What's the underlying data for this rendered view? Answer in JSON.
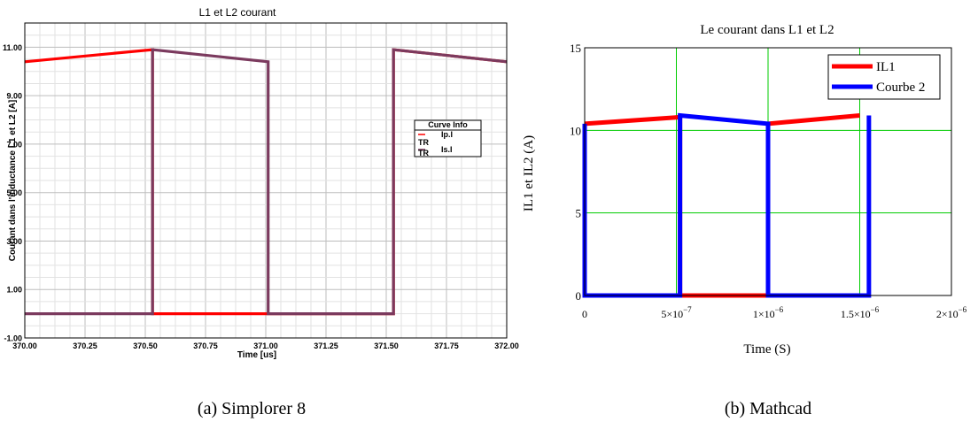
{
  "chart_data": [
    {
      "type": "line",
      "title": "L1 et L2 courant",
      "xlabel": "Time [us]",
      "ylabel": "Courant dans l'inductance L1 et L2 [A]",
      "xlim": [
        370.0,
        372.0
      ],
      "ylim": [
        -1.0,
        12.0
      ],
      "x_ticks": [
        "370.00",
        "370.25",
        "370.50",
        "370.75",
        "371.00",
        "371.25",
        "371.50",
        "371.75",
        "372.00"
      ],
      "y_ticks": [
        "-1.00",
        "1.00",
        "3.00",
        "5.00",
        "7.00",
        "9.00",
        "11.00"
      ],
      "grid": true,
      "legend_title": "Curve Info",
      "legend_position": "right",
      "series": [
        {
          "name": "Ip.I",
          "name_suffix": "TR",
          "color": "#ff0000",
          "points": [
            [
              370.0,
              10.4
            ],
            [
              370.53,
              10.9
            ],
            [
              370.53,
              0.0
            ],
            [
              371.53,
              0.0
            ],
            [
              371.53,
              10.9
            ],
            [
              372.0,
              10.4
            ]
          ]
        },
        {
          "name": "Is.I",
          "name_suffix": "TR",
          "color": "#7b3a5e",
          "points": [
            [
              370.0,
              0.0
            ],
            [
              370.53,
              0.0
            ],
            [
              370.53,
              10.9
            ],
            [
              371.01,
              10.4
            ],
            [
              371.01,
              0.0
            ],
            [
              371.53,
              0.0
            ],
            [
              371.53,
              10.9
            ],
            [
              372.0,
              10.4
            ]
          ]
        }
      ]
    },
    {
      "type": "line",
      "title": "Le courant dans L1 et L2",
      "xlabel": "Time (S)",
      "ylabel": "IL1 et IL2 (A)",
      "xlim": [
        0,
        2e-06
      ],
      "ylim": [
        0,
        15
      ],
      "x_ticks": [
        {
          "mant": "0",
          "exp": ""
        },
        {
          "mant": "5×10",
          "exp": "−7"
        },
        {
          "mant": "1×10",
          "exp": "−6"
        },
        {
          "mant": "1.5×10",
          "exp": "−6"
        },
        {
          "mant": "2×10",
          "exp": "−6"
        }
      ],
      "y_ticks": [
        "0",
        "5",
        "10",
        "15"
      ],
      "grid": true,
      "legend_position": "top-right",
      "series": [
        {
          "name": "IL1",
          "color": "#ff0000",
          "points": [
            [
              0,
              10.4
            ],
            [
              5.2e-07,
              10.8
            ],
            [
              5.2e-07,
              0.0
            ],
            [
              1e-06,
              0.0
            ],
            [
              1e-06,
              10.4
            ],
            [
              1.5e-06,
              10.9
            ]
          ]
        },
        {
          "name": "Courbe 2",
          "color": "#0000ff",
          "points": [
            [
              0,
              10.4
            ],
            [
              0,
              0.0
            ],
            [
              5.2e-07,
              0.0
            ],
            [
              5.2e-07,
              10.9
            ],
            [
              1e-06,
              10.4
            ],
            [
              1e-06,
              0.0
            ],
            [
              1.55e-06,
              0.0
            ],
            [
              1.55e-06,
              10.9
            ]
          ]
        }
      ]
    }
  ],
  "captions": {
    "a": "(a) Simplorer 8",
    "b": "(b) Mathcad"
  }
}
